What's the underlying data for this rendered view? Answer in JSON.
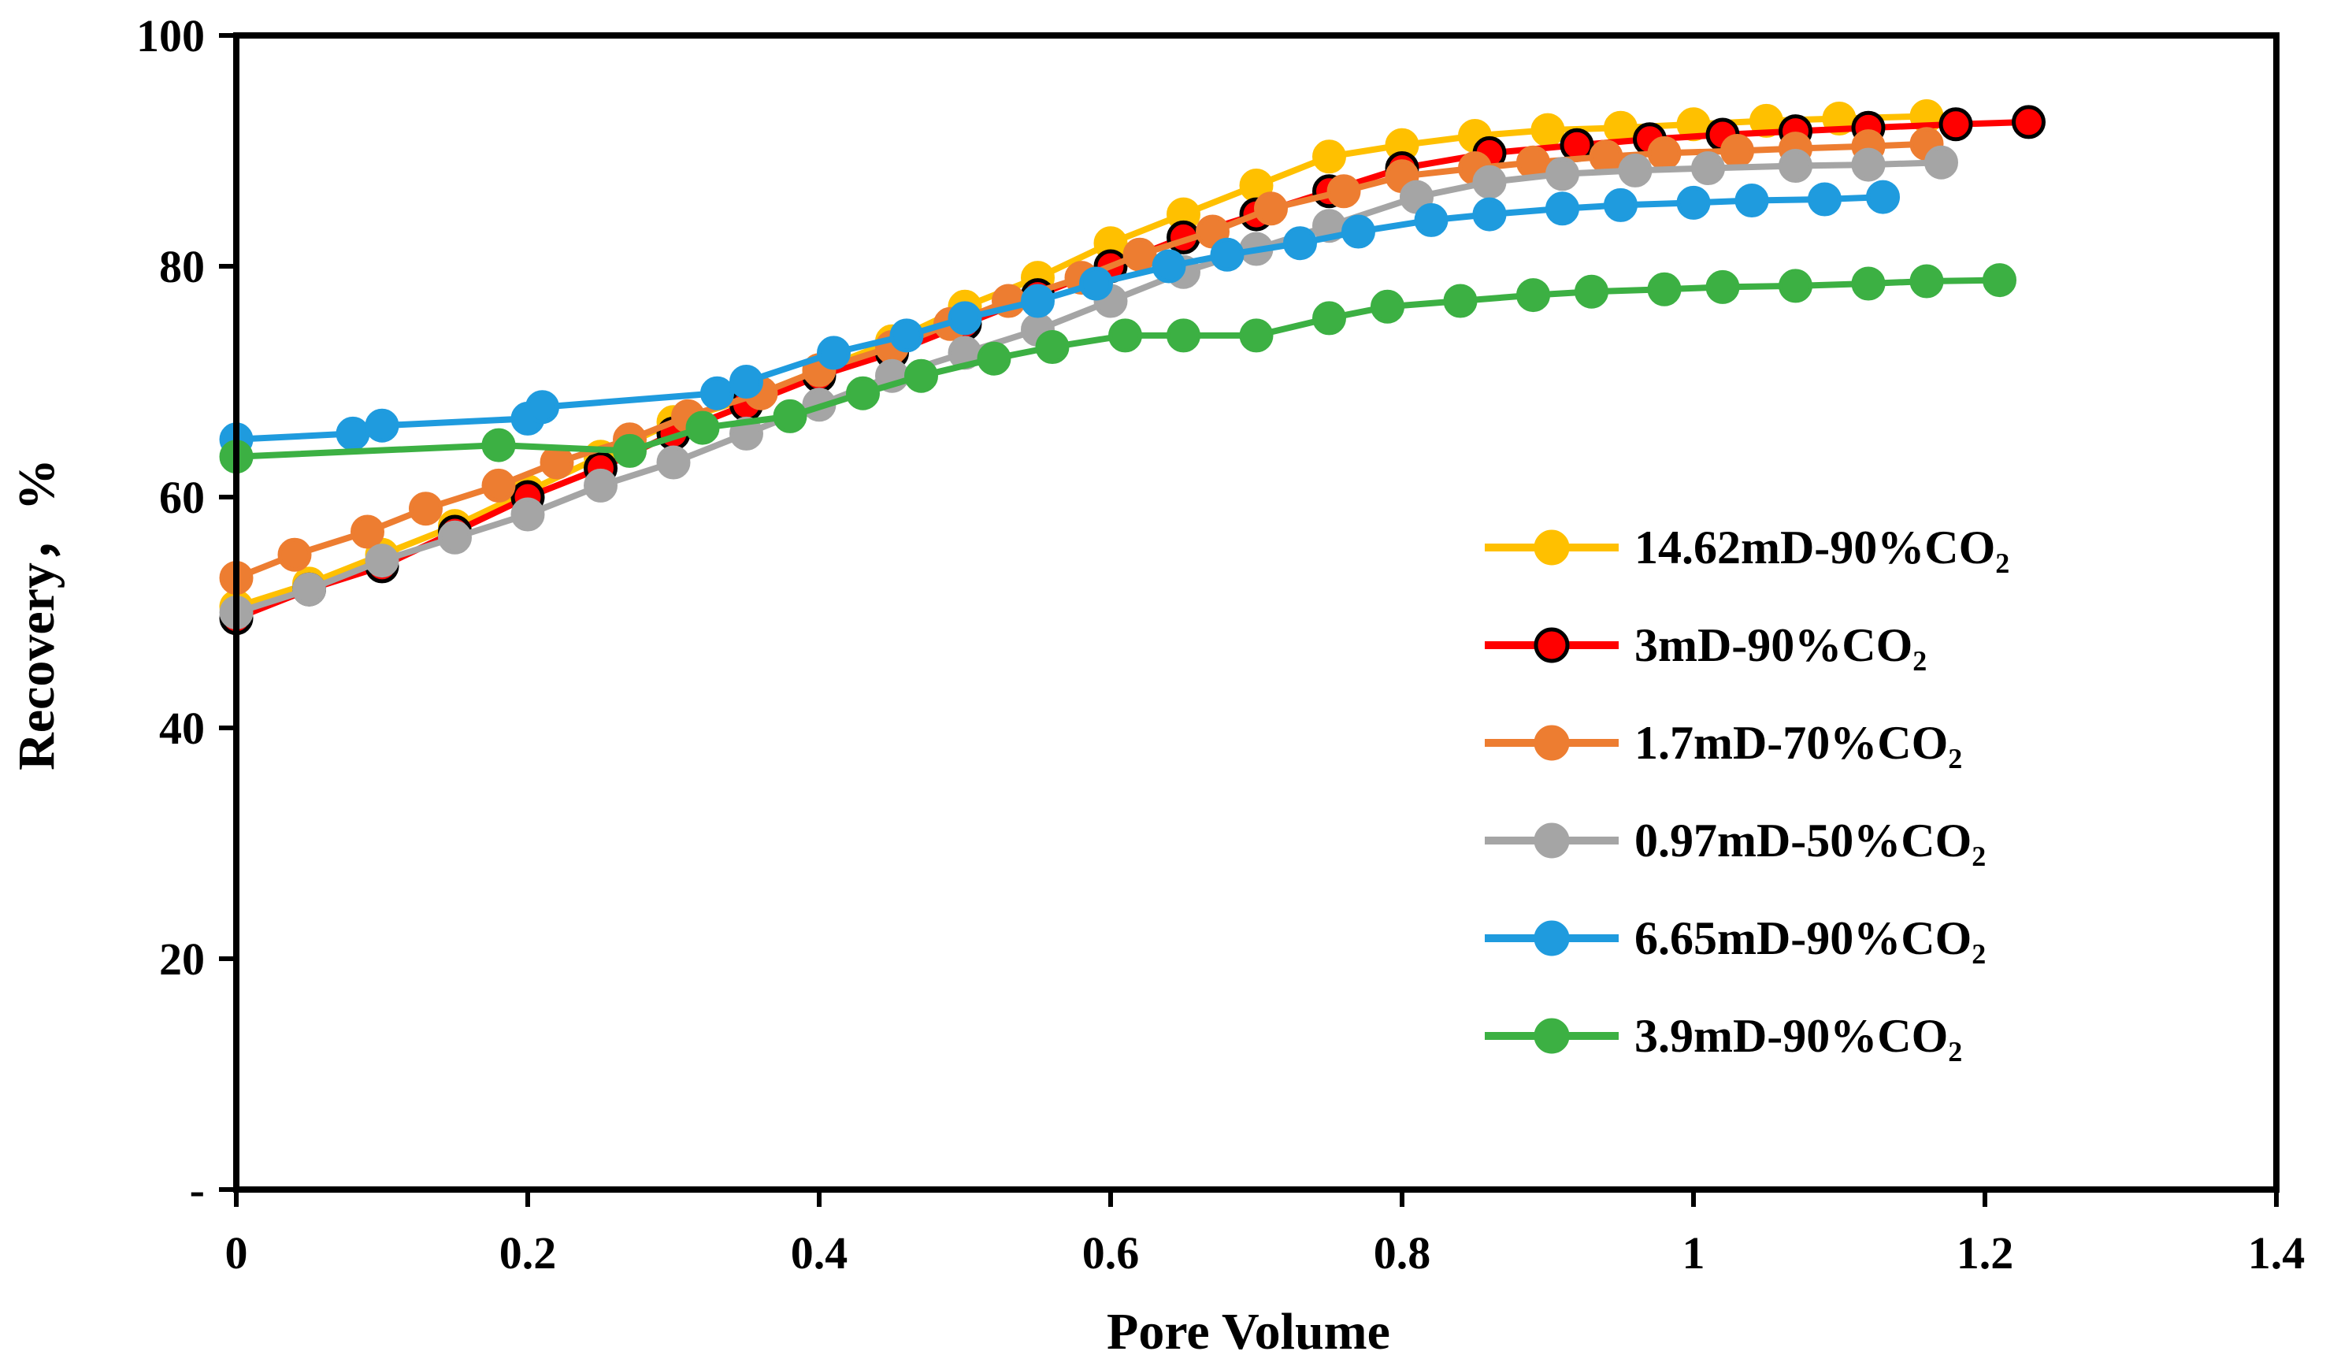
{
  "chart_data": {
    "type": "line",
    "title": "",
    "xlabel": "Pore Volume",
    "ylabel": "Recovery，%",
    "xlim": [
      0,
      1.4
    ],
    "ylim": [
      0,
      100
    ],
    "x_ticks": [
      0,
      0.2,
      0.4,
      0.6,
      0.8,
      1,
      1.2,
      1.4
    ],
    "x_tick_labels": [
      "0",
      "0.2",
      "0.4",
      "0.6",
      "0.8",
      "1",
      "1.2",
      "1.4"
    ],
    "y_ticks": [
      0,
      20,
      40,
      60,
      80,
      100
    ],
    "y_tick_labels": [
      "-",
      "20",
      "40",
      "60",
      "80",
      "100"
    ],
    "grid": false,
    "legend_position": "right",
    "series": [
      {
        "name": "14.62mD-90%CO₂",
        "color": "#FFC000",
        "marker_edge": "#FFC000",
        "x": [
          0,
          0.05,
          0.1,
          0.15,
          0.2,
          0.25,
          0.3,
          0.35,
          0.4,
          0.45,
          0.5,
          0.55,
          0.6,
          0.65,
          0.7,
          0.75,
          0.8,
          0.85,
          0.9,
          0.95,
          1.0,
          1.05,
          1.1,
          1.16
        ],
        "values": [
          50.5,
          52.5,
          55.0,
          57.5,
          60.5,
          63.5,
          66.5,
          68.5,
          71.0,
          73.5,
          76.5,
          79.0,
          82.0,
          84.5,
          87.0,
          89.5,
          90.5,
          91.3,
          91.8,
          92.0,
          92.3,
          92.6,
          92.8,
          93.0
        ]
      },
      {
        "name": "3mD-90%CO₂",
        "color": "#FF0000",
        "marker_edge": "#000000",
        "x": [
          0,
          0.05,
          0.1,
          0.15,
          0.2,
          0.25,
          0.3,
          0.35,
          0.4,
          0.45,
          0.5,
          0.55,
          0.6,
          0.65,
          0.7,
          0.75,
          0.8,
          0.86,
          0.92,
          0.97,
          1.02,
          1.07,
          1.12,
          1.18,
          1.23
        ],
        "values": [
          49.5,
          52.0,
          54.0,
          57.0,
          60.0,
          62.5,
          65.5,
          68.0,
          70.5,
          72.5,
          75.0,
          77.5,
          80.0,
          82.5,
          84.5,
          86.5,
          88.5,
          89.8,
          90.5,
          91.0,
          91.4,
          91.7,
          92.0,
          92.3,
          92.5
        ]
      },
      {
        "name": "1.7mD-70%CO₂",
        "color": "#ED7D31",
        "marker_edge": "#ED7D31",
        "x": [
          0,
          0.04,
          0.09,
          0.13,
          0.18,
          0.22,
          0.27,
          0.31,
          0.36,
          0.4,
          0.45,
          0.49,
          0.53,
          0.58,
          0.62,
          0.67,
          0.71,
          0.76,
          0.8,
          0.85,
          0.89,
          0.94,
          0.98,
          1.03,
          1.07,
          1.12,
          1.16
        ],
        "values": [
          53.0,
          55.0,
          57.0,
          59.0,
          61.0,
          63.0,
          65.0,
          67.0,
          69.0,
          71.0,
          73.0,
          75.0,
          77.0,
          79.0,
          81.0,
          83.0,
          85.0,
          86.5,
          87.8,
          88.5,
          89.0,
          89.5,
          89.8,
          90.0,
          90.2,
          90.4,
          90.6
        ]
      },
      {
        "name": "0.97mD-50%CO₂",
        "color": "#A5A5A5",
        "marker_edge": "#A5A5A5",
        "x": [
          0,
          0.05,
          0.1,
          0.15,
          0.2,
          0.25,
          0.3,
          0.35,
          0.4,
          0.45,
          0.5,
          0.55,
          0.6,
          0.65,
          0.7,
          0.75,
          0.81,
          0.86,
          0.91,
          0.96,
          1.01,
          1.07,
          1.12,
          1.17
        ],
        "values": [
          50.0,
          52.0,
          54.5,
          56.5,
          58.5,
          61.0,
          63.0,
          65.5,
          68.0,
          70.5,
          72.5,
          74.5,
          77.0,
          79.5,
          81.5,
          83.5,
          86.0,
          87.3,
          88.0,
          88.3,
          88.5,
          88.7,
          88.8,
          89.0
        ]
      },
      {
        "name": "6.65mD-90%CO₂",
        "color": "#1F9BDE",
        "marker_edge": "#1F9BDE",
        "x": [
          0,
          0.08,
          0.1,
          0.2,
          0.21,
          0.33,
          0.35,
          0.41,
          0.46,
          0.5,
          0.55,
          0.59,
          0.64,
          0.68,
          0.73,
          0.77,
          0.82,
          0.86,
          0.91,
          0.95,
          1.0,
          1.04,
          1.09,
          1.13
        ],
        "values": [
          65.0,
          65.5,
          66.2,
          66.8,
          67.8,
          69.0,
          70.0,
          72.5,
          74.0,
          75.5,
          77.0,
          78.5,
          80.0,
          81.0,
          82.0,
          83.0,
          84.0,
          84.5,
          85.0,
          85.3,
          85.5,
          85.7,
          85.8,
          86.0
        ]
      },
      {
        "name": "3.9mD-90%CO₂",
        "color": "#3CB043",
        "marker_edge": "#3CB043",
        "x": [
          0,
          0.18,
          0.27,
          0.32,
          0.38,
          0.43,
          0.47,
          0.52,
          0.56,
          0.61,
          0.65,
          0.7,
          0.75,
          0.79,
          0.84,
          0.89,
          0.93,
          0.98,
          1.02,
          1.07,
          1.12,
          1.16,
          1.21
        ],
        "values": [
          63.5,
          64.5,
          64.0,
          66.0,
          67.0,
          69.0,
          70.5,
          72.0,
          73.0,
          74.0,
          74.0,
          74.0,
          75.5,
          76.5,
          77.0,
          77.5,
          77.8,
          78.0,
          78.2,
          78.3,
          78.5,
          78.7,
          78.8
        ]
      }
    ]
  }
}
